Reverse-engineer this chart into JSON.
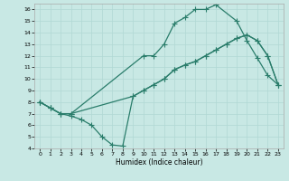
{
  "xlabel": "Humidex (Indice chaleur)",
  "xlim": [
    -0.5,
    23.5
  ],
  "ylim": [
    4,
    16.5
  ],
  "xticks": [
    0,
    1,
    2,
    3,
    4,
    5,
    6,
    7,
    8,
    9,
    10,
    11,
    12,
    13,
    14,
    15,
    16,
    17,
    18,
    19,
    20,
    21,
    22,
    23
  ],
  "yticks": [
    4,
    5,
    6,
    7,
    8,
    9,
    10,
    11,
    12,
    13,
    14,
    15,
    16
  ],
  "line_color": "#2a7d6b",
  "bg_color": "#c8e8e4",
  "line_width": 0.9,
  "marker": "+",
  "marker_size": 4,
  "lines": [
    {
      "x": [
        0,
        1,
        2,
        3,
        10,
        11,
        12,
        13,
        14,
        15,
        16,
        17,
        19,
        20,
        21,
        22,
        23
      ],
      "y": [
        8,
        7.5,
        7,
        7,
        12,
        12,
        13,
        14.8,
        15.3,
        16,
        16,
        16.4,
        15,
        13.3,
        11.8,
        10.3,
        9.5
      ]
    },
    {
      "x": [
        0,
        1,
        2,
        3,
        9,
        10,
        11,
        12,
        13,
        14,
        15,
        16,
        17,
        18,
        19,
        20,
        21,
        22,
        23
      ],
      "y": [
        8,
        7.5,
        7,
        7,
        8.5,
        9,
        9.5,
        10,
        10.8,
        11.2,
        11.5,
        12,
        12.5,
        13,
        13.5,
        13.8,
        13.3,
        12,
        9.5
      ]
    },
    {
      "x": [
        0,
        1,
        2,
        3,
        4,
        5,
        6,
        7,
        8,
        9,
        10,
        11,
        12,
        13,
        14,
        15,
        16,
        17,
        18,
        19,
        20,
        21,
        22,
        23
      ],
      "y": [
        8,
        7.5,
        7,
        6.8,
        6.5,
        6,
        5,
        4.3,
        4.2,
        8.5,
        9,
        9.5,
        10,
        10.8,
        11.2,
        11.5,
        12,
        12.5,
        13,
        13.5,
        13.8,
        13.3,
        12,
        9.5
      ]
    }
  ]
}
